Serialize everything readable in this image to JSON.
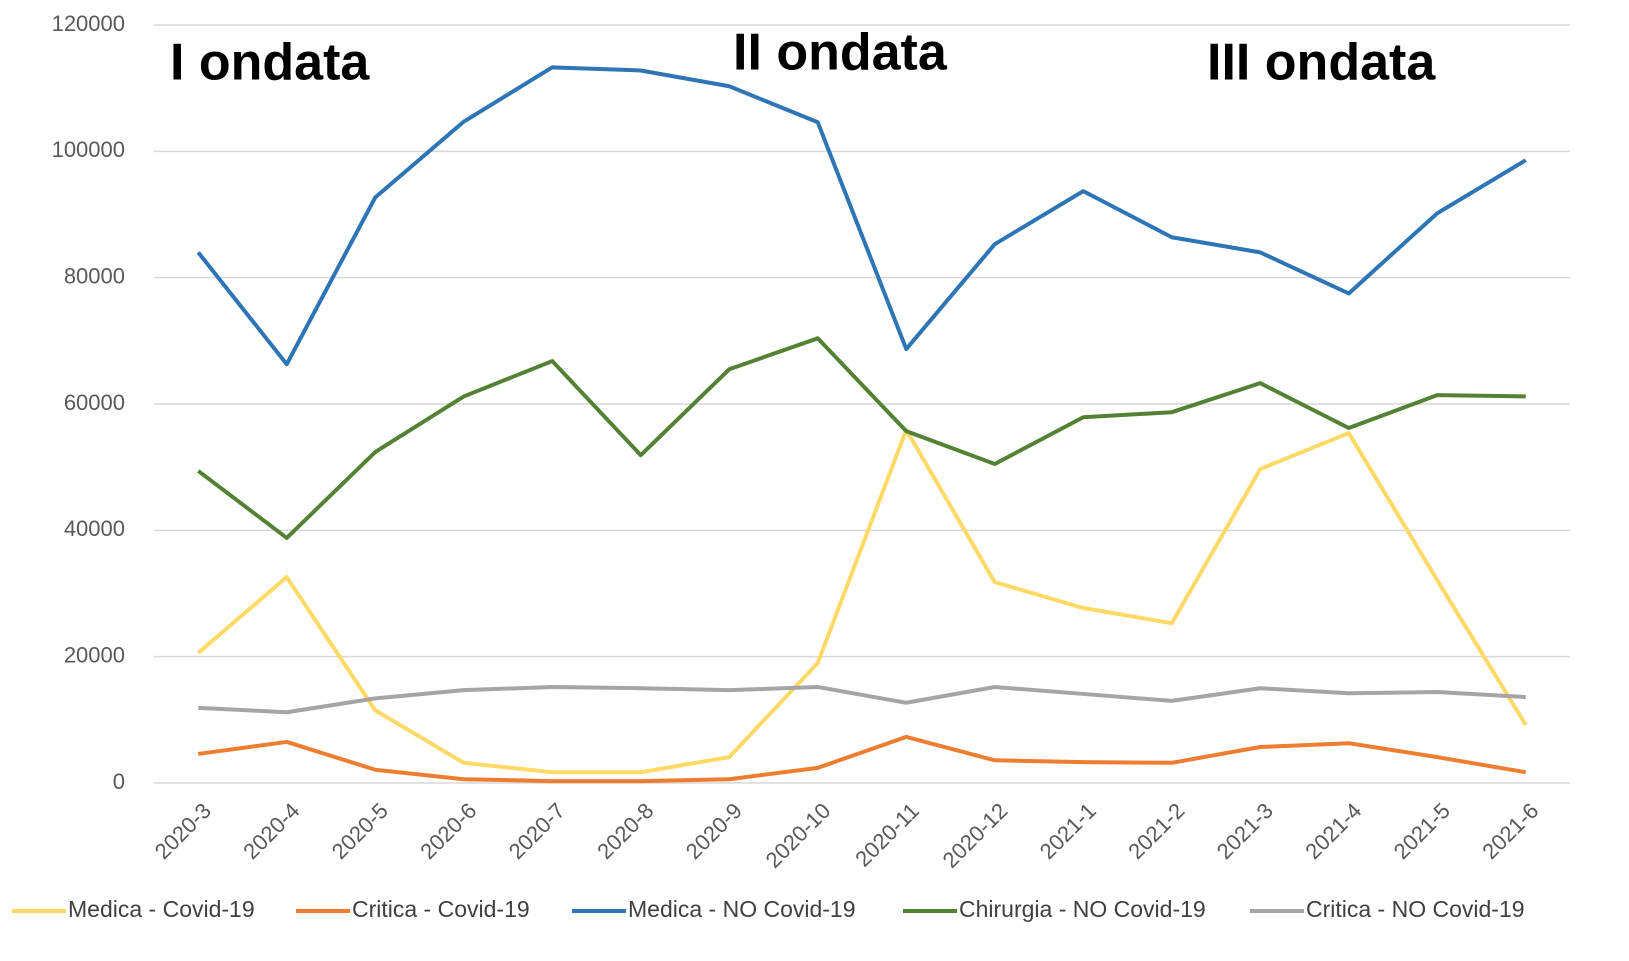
{
  "chart_data": {
    "type": "line",
    "annotations": [
      "I ondata",
      "II ondata",
      "III ondata"
    ],
    "categories": [
      "2020-3",
      "2020-4",
      "2020-5",
      "2020-6",
      "2020-7",
      "2020-8",
      "2020-9",
      "2020-10",
      "2020-11",
      "2020-12",
      "2021-1",
      "2021-2",
      "2021-3",
      "2021-4",
      "2021-5",
      "2021-6"
    ],
    "series": [
      {
        "name": "Medica - Covid-19",
        "color": "#ffd966",
        "values": [
          20600,
          32600,
          11500,
          3200,
          1700,
          1700,
          4100,
          19000,
          55900,
          31800,
          27700,
          25300,
          49700,
          55400,
          32100,
          9200
        ]
      },
      {
        "name": "Critica - Covid-19",
        "color": "#ed7d31",
        "values": [
          4600,
          6500,
          2100,
          600,
          300,
          300,
          600,
          2400,
          7300,
          3600,
          3300,
          3200,
          5700,
          6300,
          4100,
          1700
        ]
      },
      {
        "name": "Medica - NO Covid-19",
        "color": "#2e75b6",
        "values": [
          84000,
          66300,
          92700,
          104700,
          113300,
          112800,
          110300,
          104600,
          68700,
          85300,
          93700,
          86400,
          84000,
          77500,
          90200,
          98600
        ]
      },
      {
        "name": "Chirurgia - NO Covid-19",
        "color": "#548235",
        "values": [
          49400,
          38800,
          52400,
          61200,
          66800,
          51900,
          65500,
          70400,
          55700,
          50500,
          57900,
          58700,
          63300,
          56200,
          61400,
          61200
        ]
      },
      {
        "name": "Critica - NO Covid-19",
        "color": "#a5a5a5",
        "values": [
          11900,
          11200,
          13400,
          14700,
          15200,
          15000,
          14700,
          15200,
          12700,
          15200,
          14100,
          13000,
          15000,
          14200,
          14400,
          13600
        ]
      }
    ],
    "ylim": [
      0,
      120000
    ],
    "yticks": [
      0,
      20000,
      40000,
      60000,
      80000,
      100000,
      120000
    ],
    "grid": true,
    "legend": "bottom"
  }
}
